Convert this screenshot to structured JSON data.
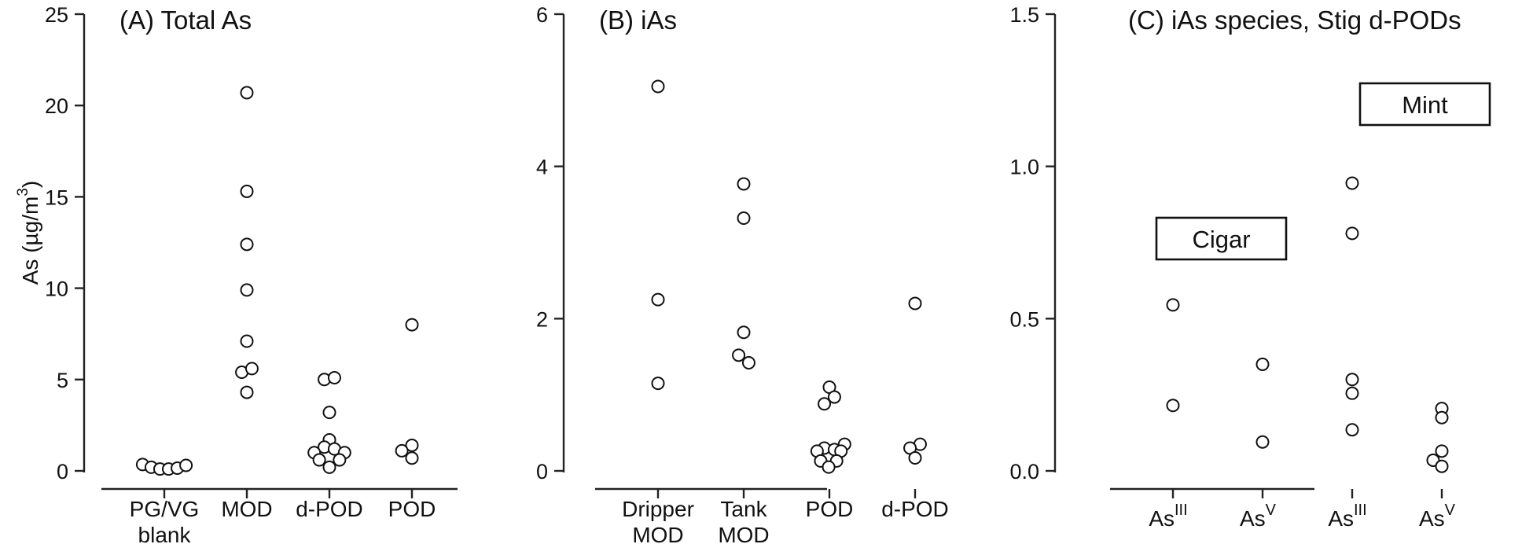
{
  "chart_data": [
    {
      "type": "scatter",
      "title": "(A) Total As",
      "ylabel": "As (µg/m3)",
      "ylim": [
        0,
        25
      ],
      "yticks": [
        "0",
        "5",
        "10",
        "15",
        "20",
        "25"
      ],
      "categories": [
        {
          "lines": [
            "PG/VG",
            "blank"
          ]
        },
        {
          "lines": [
            "MOD"
          ]
        },
        {
          "lines": [
            "d-POD"
          ]
        },
        {
          "lines": [
            "POD"
          ]
        }
      ],
      "points": [
        {
          "cat": 0,
          "y": 0.35,
          "jitter": -0.3
        },
        {
          "cat": 0,
          "y": 0.2,
          "jitter": -0.18
        },
        {
          "cat": 0,
          "y": 0.1,
          "jitter": -0.06
        },
        {
          "cat": 0,
          "y": 0.1,
          "jitter": 0.06
        },
        {
          "cat": 0,
          "y": 0.15,
          "jitter": 0.18
        },
        {
          "cat": 0,
          "y": 0.3,
          "jitter": 0.3
        },
        {
          "cat": 1,
          "y": 20.7,
          "jitter": 0.0
        },
        {
          "cat": 1,
          "y": 15.3,
          "jitter": 0.0
        },
        {
          "cat": 1,
          "y": 12.4,
          "jitter": 0.0
        },
        {
          "cat": 1,
          "y": 9.9,
          "jitter": 0.0
        },
        {
          "cat": 1,
          "y": 7.1,
          "jitter": 0.0
        },
        {
          "cat": 1,
          "y": 5.4,
          "jitter": -0.07
        },
        {
          "cat": 1,
          "y": 5.6,
          "jitter": 0.07
        },
        {
          "cat": 1,
          "y": 4.3,
          "jitter": 0.0
        },
        {
          "cat": 2,
          "y": 5.0,
          "jitter": -0.07
        },
        {
          "cat": 2,
          "y": 5.1,
          "jitter": 0.07
        },
        {
          "cat": 2,
          "y": 3.2,
          "jitter": 0.0
        },
        {
          "cat": 2,
          "y": 1.7,
          "jitter": 0.0
        },
        {
          "cat": 2,
          "y": 1.3,
          "jitter": -0.07
        },
        {
          "cat": 2,
          "y": 1.2,
          "jitter": 0.07
        },
        {
          "cat": 2,
          "y": 1.0,
          "jitter": -0.21
        },
        {
          "cat": 2,
          "y": 1.0,
          "jitter": 0.21
        },
        {
          "cat": 2,
          "y": 0.6,
          "jitter": -0.14
        },
        {
          "cat": 2,
          "y": 0.6,
          "jitter": 0.14
        },
        {
          "cat": 2,
          "y": 0.2,
          "jitter": 0.0
        },
        {
          "cat": 3,
          "y": 8.0,
          "jitter": 0.0
        },
        {
          "cat": 3,
          "y": 1.4,
          "jitter": 0.0
        },
        {
          "cat": 3,
          "y": 1.1,
          "jitter": -0.14
        },
        {
          "cat": 3,
          "y": 0.7,
          "jitter": 0.0
        }
      ]
    },
    {
      "type": "scatter",
      "title": "(B) iAs",
      "ylabel": "",
      "ylim": [
        0,
        6
      ],
      "yticks": [
        "0",
        "2",
        "4",
        "6"
      ],
      "categories": [
        {
          "lines": [
            "Dripper",
            "MOD"
          ]
        },
        {
          "lines": [
            "Tank",
            "MOD"
          ]
        },
        {
          "lines": [
            "POD"
          ]
        },
        {
          "lines": [
            "d-POD"
          ]
        }
      ],
      "points": [
        {
          "cat": 0,
          "y": 5.05,
          "jitter": 0.0
        },
        {
          "cat": 0,
          "y": 2.25,
          "jitter": 0.0
        },
        {
          "cat": 0,
          "y": 1.15,
          "jitter": 0.0
        },
        {
          "cat": 1,
          "y": 3.77,
          "jitter": 0.0
        },
        {
          "cat": 1,
          "y": 3.32,
          "jitter": 0.0
        },
        {
          "cat": 1,
          "y": 1.82,
          "jitter": 0.0
        },
        {
          "cat": 1,
          "y": 1.52,
          "jitter": -0.07
        },
        {
          "cat": 1,
          "y": 1.42,
          "jitter": 0.07
        },
        {
          "cat": 2,
          "y": 1.1,
          "jitter": 0.0
        },
        {
          "cat": 2,
          "y": 0.97,
          "jitter": 0.07
        },
        {
          "cat": 2,
          "y": 0.88,
          "jitter": -0.07
        },
        {
          "cat": 2,
          "y": 0.35,
          "jitter": 0.21
        },
        {
          "cat": 2,
          "y": 0.3,
          "jitter": -0.07
        },
        {
          "cat": 2,
          "y": 0.28,
          "jitter": 0.07
        },
        {
          "cat": 2,
          "y": 0.26,
          "jitter": -0.17
        },
        {
          "cat": 2,
          "y": 0.26,
          "jitter": 0.16
        },
        {
          "cat": 2,
          "y": 0.13,
          "jitter": -0.12
        },
        {
          "cat": 2,
          "y": 0.13,
          "jitter": 0.1
        },
        {
          "cat": 2,
          "y": 0.05,
          "jitter": -0.01
        },
        {
          "cat": 3,
          "y": 2.2,
          "jitter": 0.0
        },
        {
          "cat": 3,
          "y": 0.35,
          "jitter": 0.07
        },
        {
          "cat": 3,
          "y": 0.3,
          "jitter": -0.07
        },
        {
          "cat": 3,
          "y": 0.17,
          "jitter": 0.0
        }
      ]
    },
    {
      "type": "scatter",
      "title": "(C) iAs species, Stig d-PODs",
      "ylabel": "",
      "ylim": [
        0,
        1.5
      ],
      "yticks": [
        "0.0",
        "0.5",
        "1.0",
        "1.5"
      ],
      "categories": [
        {
          "base": "As",
          "sup": "III"
        },
        {
          "base": "As",
          "sup": "V"
        },
        {
          "base": "As",
          "sup": "III"
        },
        {
          "base": "As",
          "sup": "V"
        }
      ],
      "groups": [
        {
          "label": "Cigar",
          "over_categories": [
            0,
            1
          ]
        },
        {
          "label": "Mint",
          "over_categories": [
            2,
            3
          ]
        }
      ],
      "points": [
        {
          "cat": 0,
          "y": 0.545,
          "jitter": 0.0
        },
        {
          "cat": 0,
          "y": 0.215,
          "jitter": 0.0
        },
        {
          "cat": 1,
          "y": 0.35,
          "jitter": 0.0
        },
        {
          "cat": 1,
          "y": 0.095,
          "jitter": 0.0
        },
        {
          "cat": 2,
          "y": 0.945,
          "jitter": 0.0
        },
        {
          "cat": 2,
          "y": 0.78,
          "jitter": 0.0
        },
        {
          "cat": 2,
          "y": 0.3,
          "jitter": 0.0
        },
        {
          "cat": 2,
          "y": 0.255,
          "jitter": 0.0
        },
        {
          "cat": 2,
          "y": 0.135,
          "jitter": 0.0
        },
        {
          "cat": 3,
          "y": 0.205,
          "jitter": 0.0
        },
        {
          "cat": 3,
          "y": 0.175,
          "jitter": 0.0
        },
        {
          "cat": 3,
          "y": 0.065,
          "jitter": 0.0
        },
        {
          "cat": 3,
          "y": 0.035,
          "jitter": -0.12
        },
        {
          "cat": 3,
          "y": 0.015,
          "jitter": 0.0
        }
      ]
    }
  ]
}
